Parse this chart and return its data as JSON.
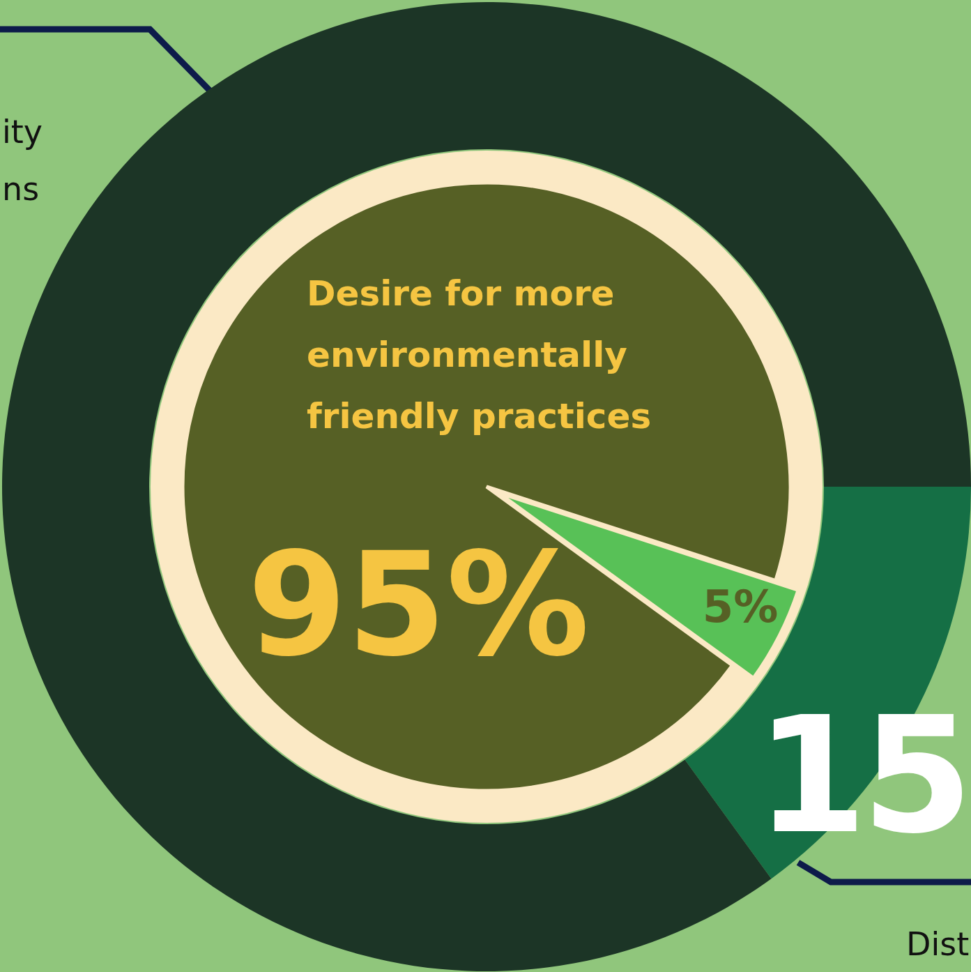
{
  "chart_data": [
    {
      "type": "donut",
      "categories": [
        null,
        null
      ],
      "values": [
        15,
        85
      ],
      "colors": [
        "#156f45",
        "#1c3526"
      ],
      "value_labels": [
        "15",
        null
      ],
      "annotations": [
        "ity",
        "ns",
        "Dist"
      ]
    },
    {
      "type": "pie",
      "categories": [
        null,
        "Desire for more environmentally friendly practices"
      ],
      "values": [
        5,
        95
      ],
      "colors": [
        "#58c157",
        "#566025"
      ],
      "value_labels": [
        "5%",
        "95%"
      ]
    }
  ]
}
